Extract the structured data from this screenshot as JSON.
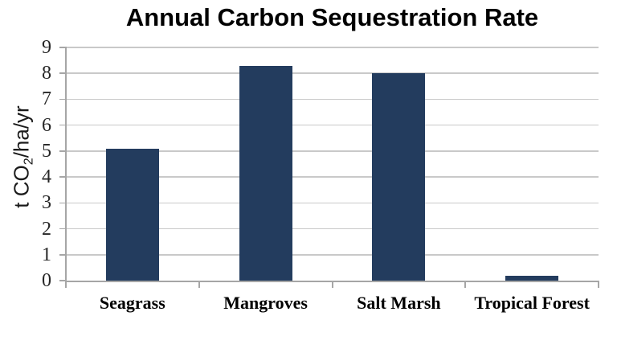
{
  "chart_data": {
    "type": "bar",
    "title": "Annual Carbon Sequestration Rate",
    "categories": [
      "Seagrass",
      "Mangroves",
      "Salt Marsh",
      "Tropical Forest"
    ],
    "values": [
      5.1,
      8.3,
      8.0,
      0.2
    ],
    "ylabel": "t CO2/ha/yr",
    "ylabel_parts": {
      "prefix": "t CO",
      "sub": "2",
      "suffix": "/ha/yr"
    },
    "xlabel": "",
    "ylim": [
      0,
      9
    ],
    "ytick_step": 1,
    "ytick_labels": [
      "0",
      "1",
      "2",
      "3",
      "4",
      "5",
      "6",
      "7",
      "8",
      "9"
    ],
    "grid": true,
    "legend_position": "none",
    "colors": {
      "bar": "#233C5E",
      "gridline": "#C9C9C9",
      "axis": "#A6A6A6",
      "tick_text": "#262626",
      "title_text": "#000000",
      "background": "#FFFFFF"
    }
  }
}
